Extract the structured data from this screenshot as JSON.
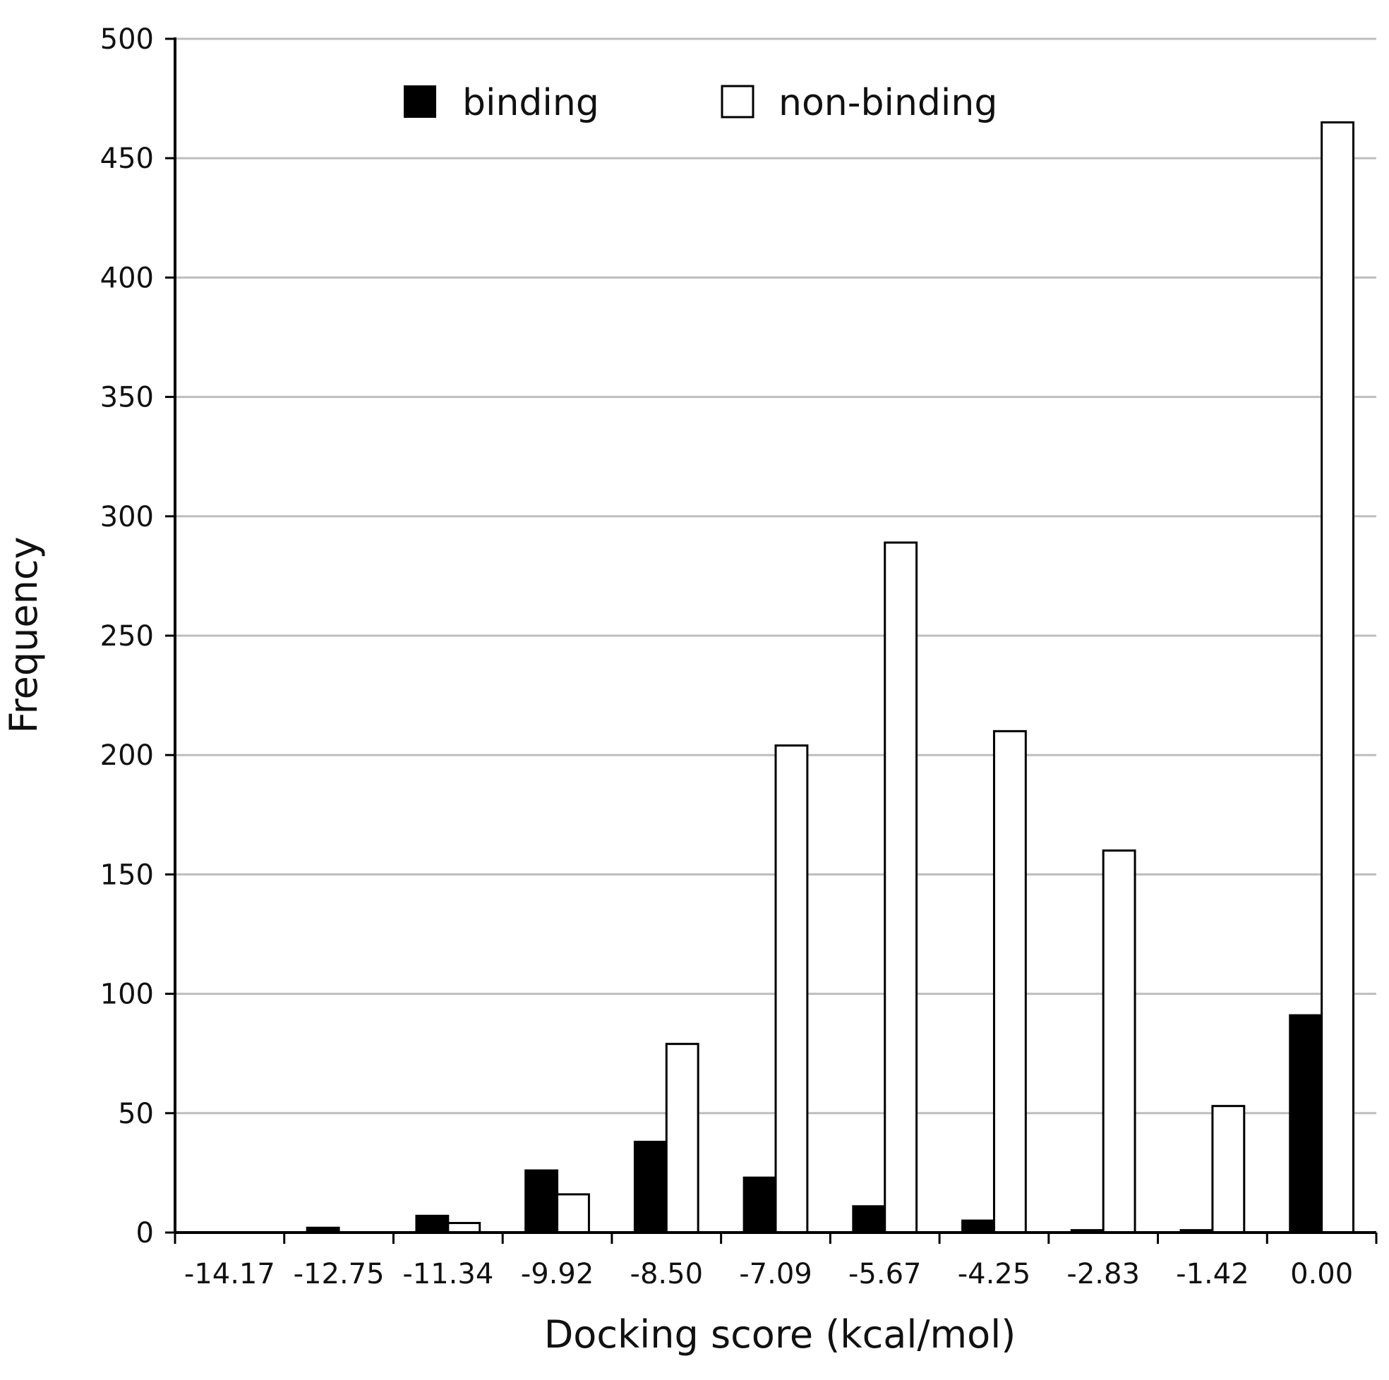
{
  "chart_data": {
    "type": "bar",
    "title": "",
    "xlabel": "Docking score (kcal/mol)",
    "ylabel": "Frequency",
    "ylim": [
      0,
      500
    ],
    "yticks": [
      0,
      50,
      100,
      150,
      200,
      250,
      300,
      350,
      400,
      450,
      500
    ],
    "ytick_labels": [
      "0",
      "50",
      "100",
      "150",
      "200",
      "250",
      "300",
      "350",
      "400",
      "450",
      "500"
    ],
    "categories": [
      "-14.17",
      "-12.75",
      "-11.34",
      "-9.92",
      "-8.50",
      "-7.09",
      "-5.67",
      "-4.25",
      "-2.83",
      "-1.42",
      "0.00"
    ],
    "series": [
      {
        "name": "binding",
        "color": "#000000",
        "values": [
          0,
          2,
          7,
          26,
          38,
          23,
          11,
          5,
          1,
          1,
          91
        ]
      },
      {
        "name": "non-binding",
        "color": "#ffffff",
        "values": [
          0,
          0,
          4,
          16,
          79,
          204,
          289,
          210,
          160,
          53,
          465
        ]
      }
    ],
    "grid": true,
    "legend": "top-center"
  }
}
